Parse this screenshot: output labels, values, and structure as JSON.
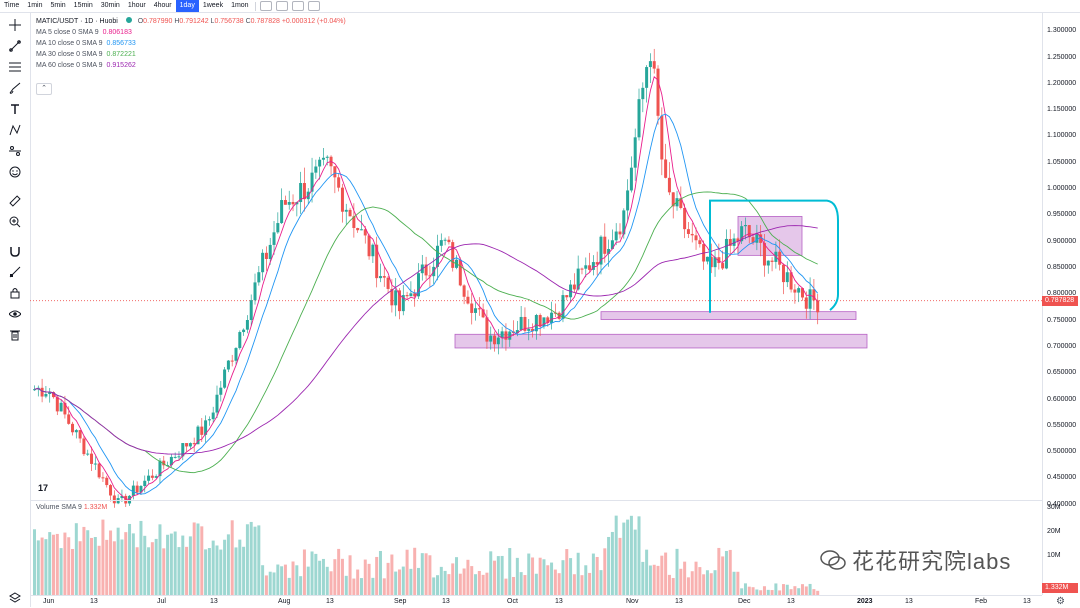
{
  "toolbar": {
    "timeframes": [
      "Time",
      "1min",
      "5min",
      "15min",
      "30min",
      "1hour",
      "4hour",
      "1day",
      "1week",
      "1mon"
    ],
    "active_index": 7
  },
  "legend": {
    "symbol": "MATIC/USDT · 1D · Huobi",
    "open_label": "O",
    "open": "0.787990",
    "high_label": "H",
    "high": "0.791242",
    "low_label": "L",
    "low": "0.756738",
    "close_label": "C",
    "close": "0.787828",
    "change": "+0.000312 (+0.04%)",
    "ma": [
      {
        "label": "MA 5 close 0 SMA 9",
        "value": "0.806183",
        "color": "#e91e8c"
      },
      {
        "label": "MA 10 close 0 SMA 9",
        "value": "0.856733",
        "color": "#2196f3"
      },
      {
        "label": "MA 30 close 0 SMA 9",
        "value": "0.872221",
        "color": "#4caf50"
      },
      {
        "label": "MA 60 close 0 SMA 9",
        "value": "0.915262",
        "color": "#9c27b0"
      }
    ],
    "collapse_glyph": "⌃"
  },
  "volume": {
    "label": "Volume SMA 9",
    "value": "1.332M",
    "axis": [
      "30M",
      "20M",
      "10M"
    ],
    "tag": "1.332M"
  },
  "price_axis": [
    "1.300000",
    "1.250000",
    "1.200000",
    "1.150000",
    "1.100000",
    "1.050000",
    "1.000000",
    "0.950000",
    "0.900000",
    "0.850000",
    "0.800000",
    "0.750000",
    "0.700000",
    "0.650000",
    "0.600000",
    "0.550000",
    "0.500000",
    "0.450000",
    "0.400000"
  ],
  "price_tag": "0.787828",
  "time_axis": [
    {
      "t": "Jun",
      "b": false
    },
    {
      "t": "13",
      "b": false
    },
    {
      "t": "Jul",
      "b": false
    },
    {
      "t": "13",
      "b": false
    },
    {
      "t": "Aug",
      "b": false
    },
    {
      "t": "13",
      "b": false
    },
    {
      "t": "Sep",
      "b": false
    },
    {
      "t": "13",
      "b": false
    },
    {
      "t": "Oct",
      "b": false
    },
    {
      "t": "13",
      "b": false
    },
    {
      "t": "Nov",
      "b": false
    },
    {
      "t": "13",
      "b": false
    },
    {
      "t": "Dec",
      "b": false
    },
    {
      "t": "13",
      "b": false
    },
    {
      "t": "2023",
      "b": true
    },
    {
      "t": "13",
      "b": false
    },
    {
      "t": "Feb",
      "b": false
    },
    {
      "t": "13",
      "b": false
    }
  ],
  "tv_logo": "17",
  "watermark": "花花研究院labs",
  "colors": {
    "up": "#26a69a",
    "down": "#ef5350",
    "box": "#e1bee7",
    "box_border": "#ab47bc",
    "bracket": "#00bcd4"
  },
  "chart_data": {
    "type": "candlestick",
    "x_labels": [
      "Jun",
      "Jul",
      "Aug",
      "Sep",
      "Oct",
      "Nov",
      "Dec",
      "2023",
      "Feb"
    ],
    "ylim": [
      0.39,
      1.31
    ],
    "key_closes": [
      {
        "date": "Jun 1",
        "price": 0.62
      },
      {
        "date": "Jun 20",
        "price": 0.4
      },
      {
        "date": "Jul 13",
        "price": 0.55
      },
      {
        "date": "Aug 1",
        "price": 0.97
      },
      {
        "date": "Aug 13",
        "price": 1.04
      },
      {
        "date": "Sep 1",
        "price": 0.77
      },
      {
        "date": "Sep 13",
        "price": 0.9
      },
      {
        "date": "Sep 25",
        "price": 0.72
      },
      {
        "date": "Oct 13",
        "price": 0.77
      },
      {
        "date": "Oct 31",
        "price": 0.95
      },
      {
        "date": "Nov 6",
        "price": 1.28
      },
      {
        "date": "Nov 10",
        "price": 1.0
      },
      {
        "date": "Nov 22",
        "price": 0.84
      },
      {
        "date": "Dec 1",
        "price": 0.92
      },
      {
        "date": "Dec 19",
        "price": 0.7878
      }
    ],
    "last_price": 0.787828
  }
}
